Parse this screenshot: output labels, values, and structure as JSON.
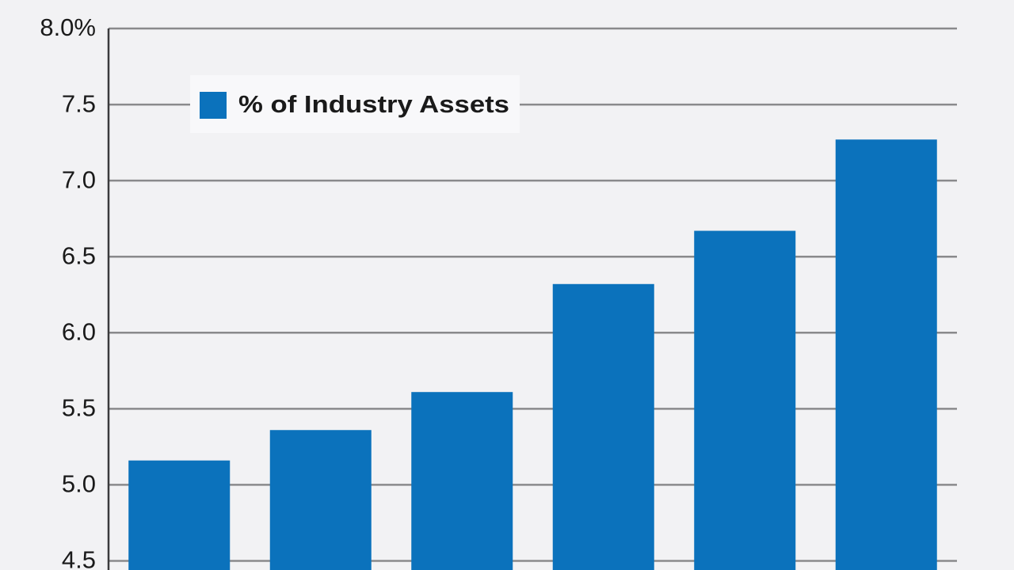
{
  "chart_data": {
    "type": "bar",
    "categories": [
      null,
      null,
      null,
      null,
      null,
      null
    ],
    "series": [
      {
        "name": "% of Industry Assets",
        "color": "#0b72bc",
        "values": [
          5.16,
          5.36,
          5.61,
          6.32,
          6.67,
          7.27
        ]
      }
    ],
    "ylim": [
      4.44,
      8.0
    ],
    "yticks": [
      {
        "value": 4.5,
        "label": "4.5"
      },
      {
        "value": 5,
        "label": "5.0"
      },
      5.5,
      {
        "value": 6,
        "label": "6.0"
      },
      6.5,
      {
        "value": 7,
        "label": "7.0"
      },
      7.5,
      {
        "value": 8,
        "label": "8.0%"
      }
    ],
    "grid": true,
    "legend": "upper left"
  }
}
